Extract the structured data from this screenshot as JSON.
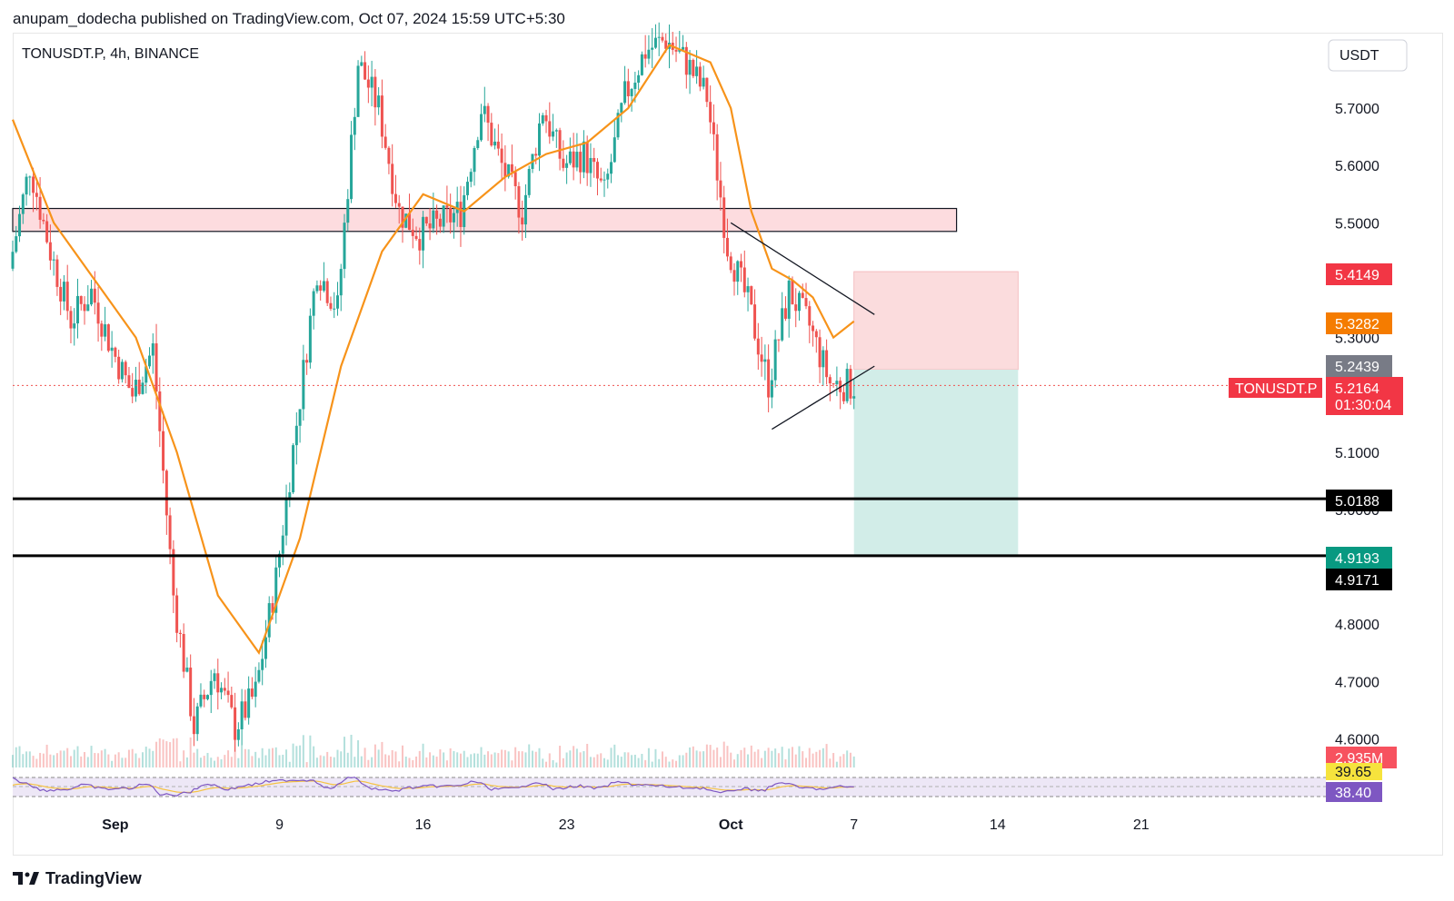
{
  "header": {
    "published_line": "anupam_dodecha published on TradingView.com, Oct 07, 2024 15:59 UTC+5:30",
    "symbol_line": "TONUSDT.P, 4h, BINANCE",
    "currency_button": "USDT"
  },
  "footer": {
    "brand": "TradingView"
  },
  "colors": {
    "up": "#26a69a",
    "down": "#ef5350",
    "ema": "#f7931a",
    "zone_fill": "#fddcdf",
    "stop_fill": "#fbdcdd",
    "target_fill": "#d2ede8",
    "rsi": "#7e57c2",
    "rsi_ma": "#f6c343"
  },
  "price_labels": {
    "stop": "5.4149",
    "ema": "5.3282",
    "entry": "5.2439",
    "symbol_tag": "TONUSDT.P",
    "last_price": "5.2164",
    "countdown": "01:30:04",
    "level1": "5.0188",
    "target": "4.9193",
    "level2": "4.9171",
    "volume": "2.935M",
    "rsi_ma": "39.65",
    "rsi": "38.40"
  },
  "chart_data": {
    "type": "candlestick",
    "symbol": "TONUSDT.P",
    "interval": "4h",
    "exchange": "BINANCE",
    "ylim": [
      4.55,
      5.83
    ],
    "y_ticks": [
      "5.7000",
      "5.6000",
      "5.5000",
      "5.3000",
      "5.1000",
      "5.0000",
      "4.8000",
      "4.7000",
      "4.6000"
    ],
    "x_ticks": [
      {
        "label": "Sep",
        "date": "2024-09-01"
      },
      {
        "label": "9",
        "date": "2024-09-09"
      },
      {
        "label": "16",
        "date": "2024-09-16"
      },
      {
        "label": "23",
        "date": "2024-09-23"
      },
      {
        "label": "Oct",
        "date": "2024-10-01"
      },
      {
        "label": "7",
        "date": "2024-10-07"
      },
      {
        "label": "14",
        "date": "2024-10-14"
      },
      {
        "label": "21",
        "date": "2024-10-21"
      }
    ],
    "x_range": [
      "2024-08-27",
      "2024-10-30"
    ],
    "price_path": [
      [
        "2024-08-27",
        5.42
      ],
      [
        "2024-08-28",
        5.6
      ],
      [
        "2024-08-29",
        5.45
      ],
      [
        "2024-08-30",
        5.33
      ],
      [
        "2024-08-31",
        5.38
      ],
      [
        "2024-09-01",
        5.28
      ],
      [
        "2024-09-02",
        5.2
      ],
      [
        "2024-09-03",
        5.28
      ],
      [
        "2024-09-04",
        4.85
      ],
      [
        "2024-09-05",
        4.62
      ],
      [
        "2024-09-06",
        4.72
      ],
      [
        "2024-09-07",
        4.62
      ],
      [
        "2024-09-08",
        4.68
      ],
      [
        "2024-09-09",
        4.88
      ],
      [
        "2024-09-10",
        5.15
      ],
      [
        "2024-09-11",
        5.42
      ],
      [
        "2024-09-12",
        5.35
      ],
      [
        "2024-09-13",
        5.78
      ],
      [
        "2024-09-14",
        5.7
      ],
      [
        "2024-09-15",
        5.52
      ],
      [
        "2024-09-16",
        5.48
      ],
      [
        "2024-09-17",
        5.5
      ],
      [
        "2024-09-18",
        5.52
      ],
      [
        "2024-09-19",
        5.7
      ],
      [
        "2024-09-20",
        5.6
      ],
      [
        "2024-09-21",
        5.52
      ],
      [
        "2024-09-22",
        5.7
      ],
      [
        "2024-09-23",
        5.6
      ],
      [
        "2024-09-24",
        5.62
      ],
      [
        "2024-09-25",
        5.55
      ],
      [
        "2024-09-26",
        5.72
      ],
      [
        "2024-09-27",
        5.8
      ],
      [
        "2024-09-28",
        5.82
      ],
      [
        "2024-09-29",
        5.78
      ],
      [
        "2024-09-30",
        5.72
      ],
      [
        "2024-10-01",
        5.46
      ],
      [
        "2024-10-02",
        5.36
      ],
      [
        "2024-10-03",
        5.22
      ],
      [
        "2024-10-04",
        5.38
      ],
      [
        "2024-10-05",
        5.32
      ],
      [
        "2024-10-06",
        5.22
      ],
      [
        "2024-10-07",
        5.2164
      ]
    ],
    "ema_path": [
      [
        "2024-08-27",
        5.68
      ],
      [
        "2024-08-29",
        5.5
      ],
      [
        "2024-08-31",
        5.4
      ],
      [
        "2024-09-02",
        5.3
      ],
      [
        "2024-09-04",
        5.1
      ],
      [
        "2024-09-06",
        4.85
      ],
      [
        "2024-09-08",
        4.75
      ],
      [
        "2024-09-10",
        4.95
      ],
      [
        "2024-09-12",
        5.25
      ],
      [
        "2024-09-14",
        5.45
      ],
      [
        "2024-09-16",
        5.55
      ],
      [
        "2024-09-18",
        5.52
      ],
      [
        "2024-09-20",
        5.58
      ],
      [
        "2024-09-22",
        5.62
      ],
      [
        "2024-09-24",
        5.64
      ],
      [
        "2024-09-26",
        5.7
      ],
      [
        "2024-09-28",
        5.81
      ],
      [
        "2024-09-30",
        5.78
      ],
      [
        "2024-10-01",
        5.7
      ],
      [
        "2024-10-02",
        5.52
      ],
      [
        "2024-10-03",
        5.42
      ],
      [
        "2024-10-04",
        5.4
      ],
      [
        "2024-10-05",
        5.37
      ],
      [
        "2024-10-06",
        5.3
      ],
      [
        "2024-10-07",
        5.3282
      ]
    ],
    "annotations": {
      "resistance_zone": {
        "from": "2024-08-27",
        "to": "2024-10-12",
        "top": 5.525,
        "bottom": 5.485
      },
      "triangle_upper": [
        [
          "2024-10-01",
          5.5
        ],
        [
          "2024-10-08",
          5.34
        ]
      ],
      "triangle_lower": [
        [
          "2024-10-03",
          5.14
        ],
        [
          "2024-10-08",
          5.25
        ]
      ],
      "support_levels": [
        5.0188,
        4.9193
      ],
      "position": {
        "from": "2024-10-07",
        "to": "2024-10-15",
        "stop": 5.4149,
        "entry": 5.2439,
        "target": 4.9193
      },
      "last_price": 5.2164
    },
    "indicators": {
      "ema_last": 5.3282,
      "volume_last": "2.935M",
      "rsi": 38.4,
      "rsi_ma": 39.65
    }
  }
}
